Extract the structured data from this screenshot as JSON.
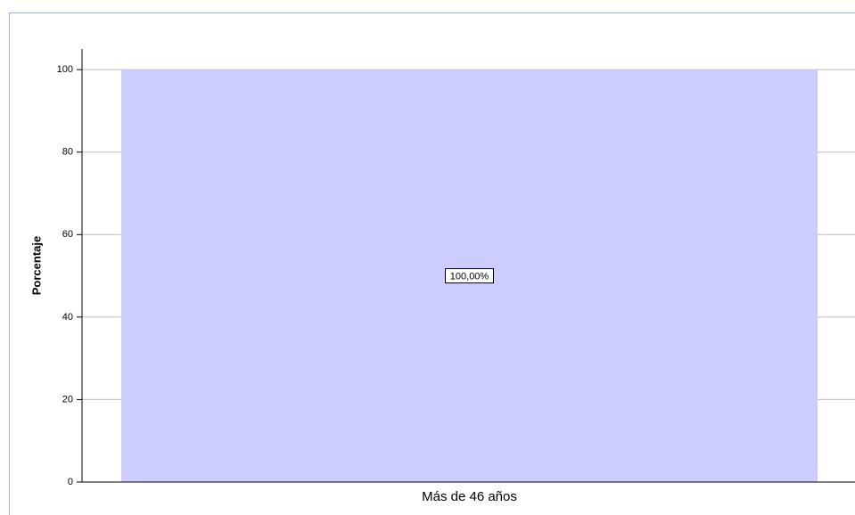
{
  "chart_data": {
    "type": "bar",
    "y_label": "Porcentaje",
    "categories": [
      "Más de 46 años"
    ],
    "values": [
      100
    ],
    "value_labels": [
      "100,00%"
    ],
    "color": "#ccccff",
    "ylim": [
      0,
      105
    ],
    "yticks": [
      0,
      20,
      40,
      60,
      80,
      100
    ],
    "grid": true
  }
}
